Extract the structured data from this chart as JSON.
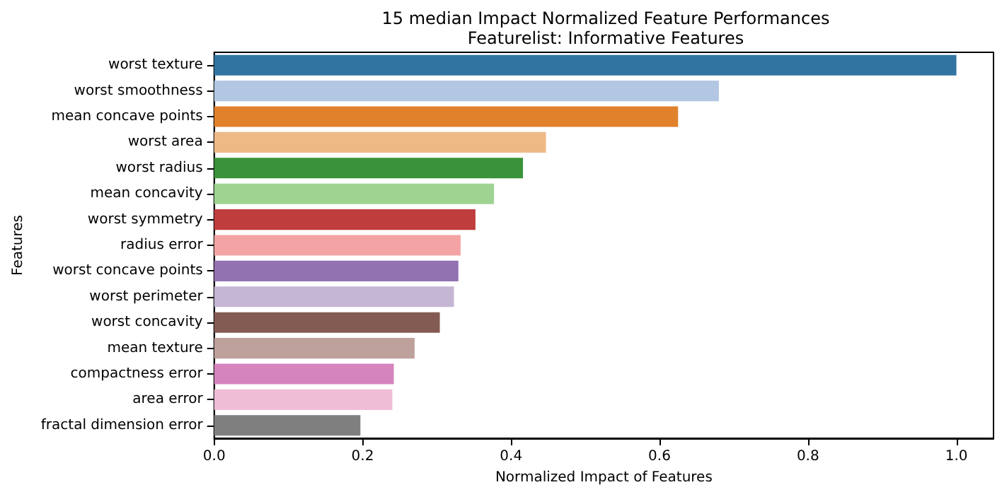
{
  "chart_data": {
    "type": "bar",
    "orientation": "horizontal",
    "title": "15 median Impact Normalized Feature Performances\nFeaturelist: Informative Features",
    "xlabel": "Normalized Impact of Features",
    "ylabel": "Features",
    "categories": [
      "worst texture",
      "worst smoothness",
      "mean concave points",
      "worst area",
      "worst radius",
      "mean concavity",
      "worst symmetry",
      "radius error",
      "worst concave points",
      "worst perimeter",
      "worst concavity",
      "mean texture",
      "compactness error",
      "area error",
      "fractal dimension error"
    ],
    "values": [
      1.0,
      0.68,
      0.625,
      0.447,
      0.416,
      0.377,
      0.352,
      0.332,
      0.329,
      0.323,
      0.304,
      0.27,
      0.242,
      0.24,
      0.197
    ],
    "colors": [
      "#3274a1",
      "#b3c7e3",
      "#e1812c",
      "#efb986",
      "#3a923a",
      "#9fd392",
      "#c03d3e",
      "#f3a3a3",
      "#9372b2",
      "#c5b6d3",
      "#845b53",
      "#bda19a",
      "#d584bd",
      "#efbed6",
      "#7f7f7f"
    ],
    "xlim": [
      0,
      1.05
    ],
    "xticks": [
      {
        "value": 0,
        "label": "0.0"
      },
      {
        "value": 0.2,
        "label": "0.2"
      },
      {
        "value": 0.4,
        "label": "0.4"
      },
      {
        "value": 0.6,
        "label": "0.6"
      },
      {
        "value": 0.8,
        "label": "0.8"
      },
      {
        "value": 1,
        "label": "1.0"
      }
    ],
    "grid": false
  }
}
